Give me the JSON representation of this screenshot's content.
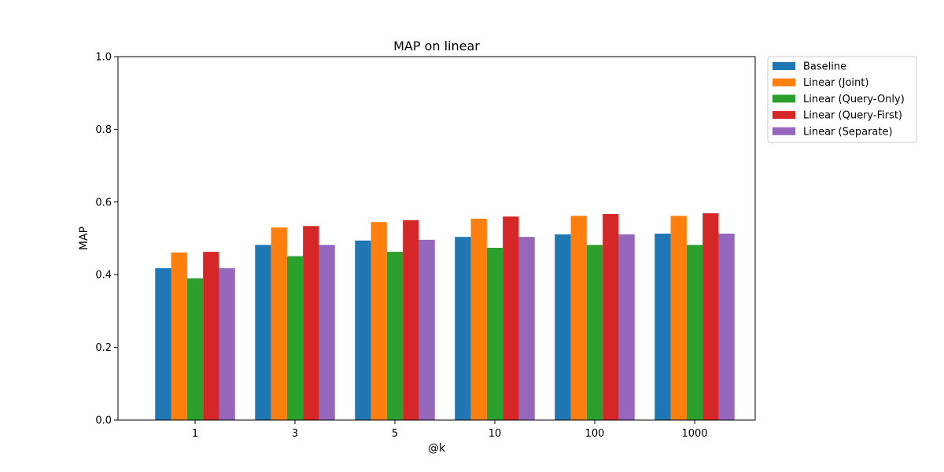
{
  "chart_data": {
    "type": "bar",
    "title": "MAP on linear",
    "xlabel": "@k",
    "ylabel": "MAP",
    "ylim": [
      0,
      1.0
    ],
    "yticks": [
      "0.0",
      "0.2",
      "0.4",
      "0.6",
      "0.8",
      "1.0"
    ],
    "categories": [
      "1",
      "3",
      "5",
      "10",
      "100",
      "1000"
    ],
    "legend_position": "outside-top-right",
    "grid": false,
    "series": [
      {
        "name": "Baseline",
        "color": "#1f77b4",
        "values": [
          0.418,
          0.482,
          0.494,
          0.504,
          0.511,
          0.513
        ]
      },
      {
        "name": "Linear (Joint)",
        "color": "#ff7f0e",
        "values": [
          0.461,
          0.53,
          0.545,
          0.554,
          0.562,
          0.562
        ]
      },
      {
        "name": "Linear (Query-Only)",
        "color": "#2ca02c",
        "values": [
          0.39,
          0.451,
          0.463,
          0.474,
          0.482,
          0.482
        ]
      },
      {
        "name": "Linear (Query-First)",
        "color": "#d62728",
        "values": [
          0.463,
          0.534,
          0.55,
          0.56,
          0.567,
          0.569
        ]
      },
      {
        "name": "Linear (Separate)",
        "color": "#9467bd",
        "values": [
          0.418,
          0.482,
          0.496,
          0.504,
          0.511,
          0.513
        ]
      }
    ]
  }
}
